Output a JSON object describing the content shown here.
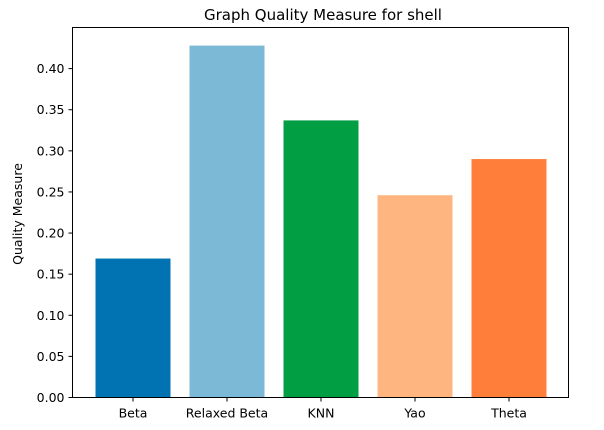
{
  "chart_data": {
    "type": "bar",
    "title": "Graph Quality Measure for shell",
    "xlabel": "",
    "ylabel": "Quality Measure",
    "categories": [
      "Beta",
      "Relaxed Beta",
      "KNN",
      "Yao",
      "Theta"
    ],
    "values": [
      0.169,
      0.428,
      0.337,
      0.246,
      0.29
    ],
    "colors": [
      "#0173b2",
      "#7bb9d6",
      "#029e43",
      "#ffb57f",
      "#ff7f3a"
    ],
    "ylim": [
      0,
      0.45
    ],
    "yticks": [
      0.0,
      0.05,
      0.1,
      0.15,
      0.2,
      0.25,
      0.3,
      0.35,
      0.4
    ],
    "ytick_labels": [
      "0.00",
      "0.05",
      "0.10",
      "0.15",
      "0.20",
      "0.25",
      "0.30",
      "0.35",
      "0.40"
    ],
    "grid": false,
    "legend": "none"
  }
}
